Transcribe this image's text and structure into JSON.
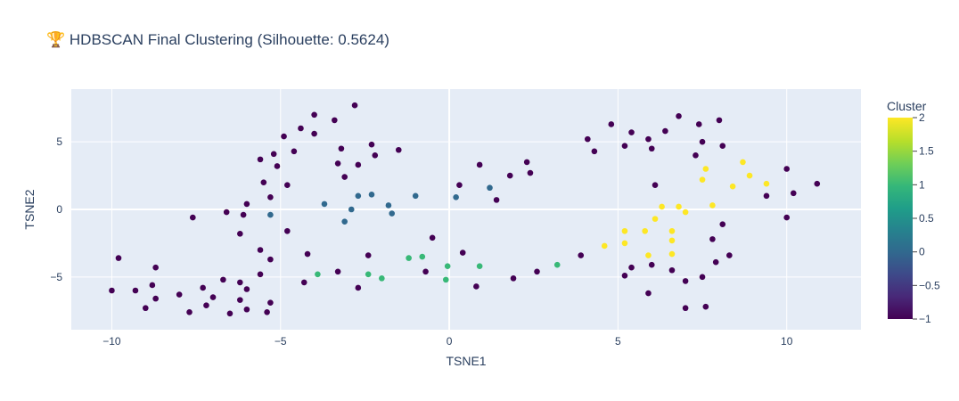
{
  "chart_data": {
    "type": "scatter",
    "title": "🏆 HDBSCAN Final Clustering (Silhouette: 0.5624)",
    "xlabel": "TSNE1",
    "ylabel": "TSNE2",
    "xlim": [
      -11.2,
      12.2
    ],
    "ylim": [
      -8.9,
      8.9
    ],
    "x_ticks": [
      -10,
      -5,
      0,
      5,
      10
    ],
    "y_ticks": [
      -5,
      0,
      5
    ],
    "x_tick_labels": [
      "−10",
      "−5",
      "0",
      "5",
      "10"
    ],
    "y_tick_labels": [
      "−5",
      "0",
      "5"
    ],
    "grid": true,
    "plot_bg": "#e5ecf6",
    "colorscale": "Viridis",
    "colorbar": {
      "title": "Cluster",
      "min": -1,
      "max": 2,
      "ticks": [
        2,
        1.5,
        1,
        0.5,
        0,
        -0.5,
        -1
      ],
      "tick_labels": [
        "2",
        "1.5",
        "1",
        "0.5",
        "0",
        "−0.5",
        "−1"
      ]
    },
    "points": [
      {
        "x": -10.0,
        "y": -6.0,
        "c": -1
      },
      {
        "x": -9.8,
        "y": -3.6,
        "c": -1
      },
      {
        "x": -9.3,
        "y": -6.0,
        "c": -1
      },
      {
        "x": -9.0,
        "y": -7.3,
        "c": -1
      },
      {
        "x": -8.7,
        "y": -4.3,
        "c": -1
      },
      {
        "x": -8.8,
        "y": -5.6,
        "c": -1
      },
      {
        "x": -8.7,
        "y": -6.6,
        "c": -1
      },
      {
        "x": -8.0,
        "y": -6.3,
        "c": -1
      },
      {
        "x": -7.7,
        "y": -7.6,
        "c": -1
      },
      {
        "x": -7.6,
        "y": -0.6,
        "c": -1
      },
      {
        "x": -7.3,
        "y": -5.8,
        "c": -1
      },
      {
        "x": -7.2,
        "y": -7.1,
        "c": -1
      },
      {
        "x": -7.0,
        "y": -6.5,
        "c": -1
      },
      {
        "x": -6.7,
        "y": -5.2,
        "c": -1
      },
      {
        "x": -6.6,
        "y": -0.2,
        "c": -1
      },
      {
        "x": -6.5,
        "y": -7.7,
        "c": -1
      },
      {
        "x": -6.2,
        "y": -6.7,
        "c": -1
      },
      {
        "x": -6.2,
        "y": -5.4,
        "c": -1
      },
      {
        "x": -6.0,
        "y": -5.9,
        "c": -1
      },
      {
        "x": -6.0,
        "y": -7.4,
        "c": -1
      },
      {
        "x": -6.2,
        "y": -1.8,
        "c": -1
      },
      {
        "x": -6.1,
        "y": -0.4,
        "c": -1
      },
      {
        "x": -6.0,
        "y": 0.4,
        "c": -1
      },
      {
        "x": -5.6,
        "y": -3.0,
        "c": -1
      },
      {
        "x": -5.6,
        "y": -4.8,
        "c": -1
      },
      {
        "x": -5.5,
        "y": 2.0,
        "c": -1
      },
      {
        "x": -5.6,
        "y": 3.7,
        "c": -1
      },
      {
        "x": -5.3,
        "y": -3.7,
        "c": -1
      },
      {
        "x": -5.3,
        "y": -6.9,
        "c": -1
      },
      {
        "x": -5.4,
        "y": -7.6,
        "c": -1
      },
      {
        "x": -5.3,
        "y": 0.9,
        "c": -1
      },
      {
        "x": -5.2,
        "y": 4.1,
        "c": -1
      },
      {
        "x": -5.1,
        "y": 3.2,
        "c": -1
      },
      {
        "x": -4.9,
        "y": 5.4,
        "c": -1
      },
      {
        "x": -4.8,
        "y": 1.8,
        "c": -1
      },
      {
        "x": -4.8,
        "y": -1.6,
        "c": -1
      },
      {
        "x": -4.6,
        "y": 4.3,
        "c": -1
      },
      {
        "x": -4.4,
        "y": 6.0,
        "c": -1
      },
      {
        "x": -4.2,
        "y": -3.3,
        "c": -1
      },
      {
        "x": -4.3,
        "y": -5.4,
        "c": -1
      },
      {
        "x": -4.0,
        "y": 7.0,
        "c": -1
      },
      {
        "x": -4.0,
        "y": 5.6,
        "c": -1
      },
      {
        "x": -3.4,
        "y": 6.6,
        "c": -1
      },
      {
        "x": -3.3,
        "y": 3.4,
        "c": -1
      },
      {
        "x": -3.2,
        "y": 4.5,
        "c": -1
      },
      {
        "x": -3.1,
        "y": 2.4,
        "c": -1
      },
      {
        "x": -3.3,
        "y": -4.6,
        "c": -1
      },
      {
        "x": -2.8,
        "y": 7.7,
        "c": -1
      },
      {
        "x": -2.7,
        "y": 3.3,
        "c": -1
      },
      {
        "x": -2.7,
        "y": -5.8,
        "c": -1
      },
      {
        "x": -2.4,
        "y": -3.4,
        "c": -1
      },
      {
        "x": -2.3,
        "y": 4.8,
        "c": -1
      },
      {
        "x": -2.2,
        "y": 4.0,
        "c": -1
      },
      {
        "x": -1.5,
        "y": 4.4,
        "c": -1
      },
      {
        "x": -0.7,
        "y": -4.6,
        "c": -1
      },
      {
        "x": -0.5,
        "y": -2.1,
        "c": -1
      },
      {
        "x": 0.3,
        "y": 1.8,
        "c": -1
      },
      {
        "x": 0.4,
        "y": -3.2,
        "c": -1
      },
      {
        "x": 0.8,
        "y": -5.7,
        "c": -1
      },
      {
        "x": 0.9,
        "y": 3.3,
        "c": -1
      },
      {
        "x": 1.4,
        "y": 0.7,
        "c": -1
      },
      {
        "x": 1.9,
        "y": -5.1,
        "c": -1
      },
      {
        "x": 1.8,
        "y": 2.5,
        "c": -1
      },
      {
        "x": 2.3,
        "y": 3.5,
        "c": -1
      },
      {
        "x": 2.4,
        "y": 2.7,
        "c": -1
      },
      {
        "x": 2.6,
        "y": -4.6,
        "c": -1
      },
      {
        "x": 3.9,
        "y": -3.4,
        "c": -1
      },
      {
        "x": 4.1,
        "y": 5.2,
        "c": -1
      },
      {
        "x": 4.3,
        "y": 4.3,
        "c": -1
      },
      {
        "x": 4.8,
        "y": 6.3,
        "c": -1
      },
      {
        "x": 5.2,
        "y": 4.7,
        "c": -1
      },
      {
        "x": 5.4,
        "y": 5.7,
        "c": -1
      },
      {
        "x": 5.2,
        "y": -4.9,
        "c": -1
      },
      {
        "x": 5.4,
        "y": -4.3,
        "c": -1
      },
      {
        "x": 5.9,
        "y": 5.2,
        "c": -1
      },
      {
        "x": 6.0,
        "y": 4.5,
        "c": -1
      },
      {
        "x": 6.1,
        "y": 1.8,
        "c": -1
      },
      {
        "x": 6.4,
        "y": 5.8,
        "c": -1
      },
      {
        "x": 6.0,
        "y": -4.1,
        "c": -1
      },
      {
        "x": 5.9,
        "y": -6.2,
        "c": -1
      },
      {
        "x": 6.6,
        "y": -4.5,
        "c": -1
      },
      {
        "x": 6.8,
        "y": 6.9,
        "c": -1
      },
      {
        "x": 7.0,
        "y": -5.3,
        "c": -1
      },
      {
        "x": 7.0,
        "y": -7.3,
        "c": -1
      },
      {
        "x": 7.3,
        "y": 4.0,
        "c": -1
      },
      {
        "x": 7.4,
        "y": 6.3,
        "c": -1
      },
      {
        "x": 7.5,
        "y": 5.0,
        "c": -1
      },
      {
        "x": 7.5,
        "y": -5.0,
        "c": -1
      },
      {
        "x": 7.6,
        "y": -7.2,
        "c": -1
      },
      {
        "x": 7.8,
        "y": -2.2,
        "c": -1
      },
      {
        "x": 7.9,
        "y": -3.9,
        "c": -1
      },
      {
        "x": 8.0,
        "y": 6.6,
        "c": -1
      },
      {
        "x": 8.1,
        "y": 4.7,
        "c": -1
      },
      {
        "x": 8.1,
        "y": -1.1,
        "c": -1
      },
      {
        "x": 8.3,
        "y": -3.4,
        "c": -1
      },
      {
        "x": 9.4,
        "y": 1.0,
        "c": -1
      },
      {
        "x": 10.0,
        "y": 3.0,
        "c": -1
      },
      {
        "x": 10.0,
        "y": -0.6,
        "c": -1
      },
      {
        "x": 10.2,
        "y": 1.2,
        "c": -1
      },
      {
        "x": 10.9,
        "y": 1.9,
        "c": -1
      },
      {
        "x": -5.3,
        "y": -0.4,
        "c": 0
      },
      {
        "x": -3.7,
        "y": 0.4,
        "c": 0
      },
      {
        "x": -3.1,
        "y": -0.9,
        "c": 0
      },
      {
        "x": -2.9,
        "y": 0.0,
        "c": 0
      },
      {
        "x": -2.7,
        "y": 1.0,
        "c": 0
      },
      {
        "x": -2.3,
        "y": 1.1,
        "c": 0
      },
      {
        "x": -1.8,
        "y": 0.3,
        "c": 0
      },
      {
        "x": -1.7,
        "y": -0.3,
        "c": 0
      },
      {
        "x": -1.0,
        "y": 1.0,
        "c": 0
      },
      {
        "x": 0.2,
        "y": 0.9,
        "c": 0
      },
      {
        "x": 1.2,
        "y": 1.6,
        "c": 0
      },
      {
        "x": -3.9,
        "y": -4.8,
        "c": 1
      },
      {
        "x": -2.4,
        "y": -4.8,
        "c": 1
      },
      {
        "x": -2.0,
        "y": -5.1,
        "c": 1
      },
      {
        "x": -1.2,
        "y": -3.6,
        "c": 1
      },
      {
        "x": -0.8,
        "y": -3.5,
        "c": 1
      },
      {
        "x": -0.1,
        "y": -5.2,
        "c": 1
      },
      {
        "x": -0.05,
        "y": -4.2,
        "c": 1
      },
      {
        "x": 0.9,
        "y": -4.2,
        "c": 1
      },
      {
        "x": 3.2,
        "y": -4.1,
        "c": 1
      },
      {
        "x": 4.6,
        "y": -2.7,
        "c": 2
      },
      {
        "x": 5.2,
        "y": -2.5,
        "c": 2
      },
      {
        "x": 5.2,
        "y": -1.6,
        "c": 2
      },
      {
        "x": 5.8,
        "y": -1.6,
        "c": 2
      },
      {
        "x": 5.9,
        "y": -3.4,
        "c": 2
      },
      {
        "x": 6.1,
        "y": -0.7,
        "c": 2
      },
      {
        "x": 6.3,
        "y": 0.2,
        "c": 2
      },
      {
        "x": 6.6,
        "y": -1.6,
        "c": 2
      },
      {
        "x": 6.6,
        "y": -2.3,
        "c": 2
      },
      {
        "x": 6.6,
        "y": -3.3,
        "c": 2
      },
      {
        "x": 6.8,
        "y": 0.2,
        "c": 2
      },
      {
        "x": 7.0,
        "y": -0.2,
        "c": 2
      },
      {
        "x": 7.5,
        "y": 2.2,
        "c": 2
      },
      {
        "x": 7.6,
        "y": 3.0,
        "c": 2
      },
      {
        "x": 7.8,
        "y": 0.3,
        "c": 2
      },
      {
        "x": 8.4,
        "y": 1.7,
        "c": 2
      },
      {
        "x": 8.7,
        "y": 3.5,
        "c": 2
      },
      {
        "x": 8.9,
        "y": 2.5,
        "c": 2
      },
      {
        "x": 9.4,
        "y": 1.9,
        "c": 2
      }
    ]
  }
}
